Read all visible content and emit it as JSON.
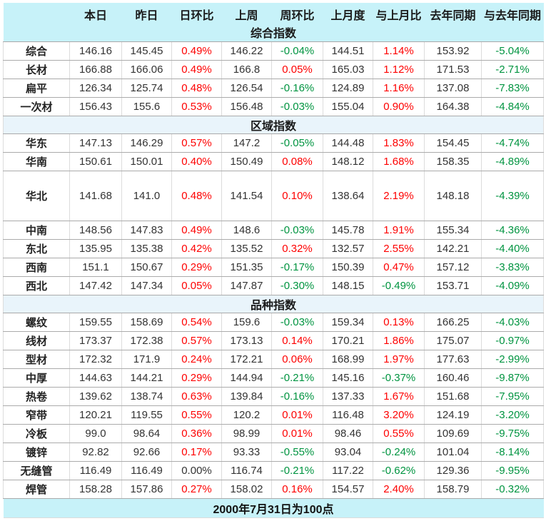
{
  "chart_data": {
    "type": "table",
    "columns": [
      "",
      "本日",
      "昨日",
      "日环比",
      "上周",
      "周环比",
      "上月度",
      "与上月比",
      "去年同期",
      "与去年同期"
    ],
    "sections": [
      {
        "title": "综合指数",
        "rows": [
          {
            "label": "综合",
            "values": [
              "146.16",
              "145.45",
              "0.49%",
              "146.22",
              "-0.04%",
              "144.51",
              "1.14%",
              "153.92",
              "-5.04%"
            ]
          },
          {
            "label": "长材",
            "values": [
              "166.88",
              "166.06",
              "0.49%",
              "166.8",
              "0.05%",
              "165.03",
              "1.12%",
              "171.53",
              "-2.71%"
            ]
          },
          {
            "label": "扁平",
            "values": [
              "126.34",
              "125.74",
              "0.48%",
              "126.54",
              "-0.16%",
              "124.89",
              "1.16%",
              "137.08",
              "-7.83%"
            ]
          },
          {
            "label": "一次材",
            "values": [
              "156.43",
              "155.6",
              "0.53%",
              "156.48",
              "-0.03%",
              "155.04",
              "0.90%",
              "164.38",
              "-4.84%"
            ]
          }
        ]
      },
      {
        "title": "区域指数",
        "rows": [
          {
            "label": "华东",
            "values": [
              "147.13",
              "146.29",
              "0.57%",
              "147.2",
              "-0.05%",
              "144.48",
              "1.83%",
              "154.45",
              "-4.74%"
            ]
          },
          {
            "label": "华南",
            "values": [
              "150.61",
              "150.01",
              "0.40%",
              "150.49",
              "0.08%",
              "148.12",
              "1.68%",
              "158.35",
              "-4.89%"
            ]
          },
          {
            "label": "华北",
            "values": [
              "141.68",
              "141.0",
              "0.48%",
              "141.54",
              "0.10%",
              "138.64",
              "2.19%",
              "148.18",
              "-4.39%"
            ],
            "tall": true
          },
          {
            "label": "中南",
            "values": [
              "148.56",
              "147.83",
              "0.49%",
              "148.6",
              "-0.03%",
              "145.78",
              "1.91%",
              "155.34",
              "-4.36%"
            ]
          },
          {
            "label": "东北",
            "values": [
              "135.95",
              "135.38",
              "0.42%",
              "135.52",
              "0.32%",
              "132.57",
              "2.55%",
              "142.21",
              "-4.40%"
            ]
          },
          {
            "label": "西南",
            "values": [
              "151.1",
              "150.67",
              "0.29%",
              "151.35",
              "-0.17%",
              "150.39",
              "0.47%",
              "157.12",
              "-3.83%"
            ]
          },
          {
            "label": "西北",
            "values": [
              "147.42",
              "147.34",
              "0.05%",
              "147.87",
              "-0.30%",
              "148.15",
              "-0.49%",
              "153.71",
              "-4.09%"
            ]
          }
        ]
      },
      {
        "title": "品种指数",
        "rows": [
          {
            "label": "螺纹",
            "values": [
              "159.55",
              "158.69",
              "0.54%",
              "159.6",
              "-0.03%",
              "159.34",
              "0.13%",
              "166.25",
              "-4.03%"
            ]
          },
          {
            "label": "线材",
            "values": [
              "173.37",
              "172.38",
              "0.57%",
              "173.13",
              "0.14%",
              "170.21",
              "1.86%",
              "175.07",
              "-0.97%"
            ]
          },
          {
            "label": "型材",
            "values": [
              "172.32",
              "171.9",
              "0.24%",
              "172.21",
              "0.06%",
              "168.99",
              "1.97%",
              "177.63",
              "-2.99%"
            ]
          },
          {
            "label": "中厚",
            "values": [
              "144.63",
              "144.21",
              "0.29%",
              "144.94",
              "-0.21%",
              "145.16",
              "-0.37%",
              "160.46",
              "-9.87%"
            ]
          },
          {
            "label": "热卷",
            "values": [
              "139.62",
              "138.74",
              "0.63%",
              "139.84",
              "-0.16%",
              "137.33",
              "1.67%",
              "151.68",
              "-7.95%"
            ]
          },
          {
            "label": "窄带",
            "values": [
              "120.21",
              "119.55",
              "0.55%",
              "120.2",
              "0.01%",
              "116.48",
              "3.20%",
              "124.19",
              "-3.20%"
            ]
          },
          {
            "label": "冷板",
            "values": [
              "99.0",
              "98.64",
              "0.36%",
              "98.99",
              "0.01%",
              "98.46",
              "0.55%",
              "109.69",
              "-9.75%"
            ]
          },
          {
            "label": "镀锌",
            "values": [
              "92.82",
              "92.66",
              "0.17%",
              "93.33",
              "-0.55%",
              "93.04",
              "-0.24%",
              "101.04",
              "-8.14%"
            ]
          },
          {
            "label": "无缝管",
            "values": [
              "116.49",
              "116.49",
              "0.00%",
              "116.74",
              "-0.21%",
              "117.22",
              "-0.62%",
              "129.36",
              "-9.95%"
            ]
          },
          {
            "label": "焊管",
            "values": [
              "158.28",
              "157.86",
              "0.27%",
              "158.02",
              "0.16%",
              "154.57",
              "2.40%",
              "158.79",
              "-0.32%"
            ]
          }
        ]
      }
    ],
    "footer": "2000年7月31日为100点"
  },
  "colors": {
    "positive": "#fe0000",
    "negative": "#009440",
    "zero": "#333333",
    "header_bg": "#c7f2f9",
    "section_bg": "#e9f4fb"
  }
}
